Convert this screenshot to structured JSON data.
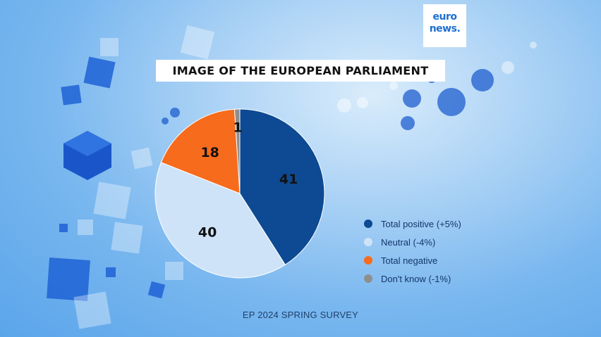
{
  "brand": {
    "logo_line1": "euro",
    "logo_line2": "news."
  },
  "colors": {
    "total_positive": "#0d4a93",
    "neutral": "#cfe3f8",
    "total_negative": "#f76b1c",
    "dont_know": "#8e8e8e"
  },
  "footer": "EP 2024 SPRING SURVEY",
  "chart_data": {
    "type": "pie",
    "title": "IMAGE OF THE EUROPEAN PARLIAMENT",
    "legend_position": "right",
    "slices": [
      {
        "label": "Total positive (+5%)",
        "value": 41,
        "color": "#0d4a93"
      },
      {
        "label": "Neutral (-4%)",
        "value": 40,
        "color": "#cfe3f8"
      },
      {
        "label": "Total negative",
        "value": 18,
        "color": "#f76b1c"
      },
      {
        "label": "Don't know (-1%)",
        "value": 1,
        "color": "#8e8e8e"
      }
    ]
  }
}
